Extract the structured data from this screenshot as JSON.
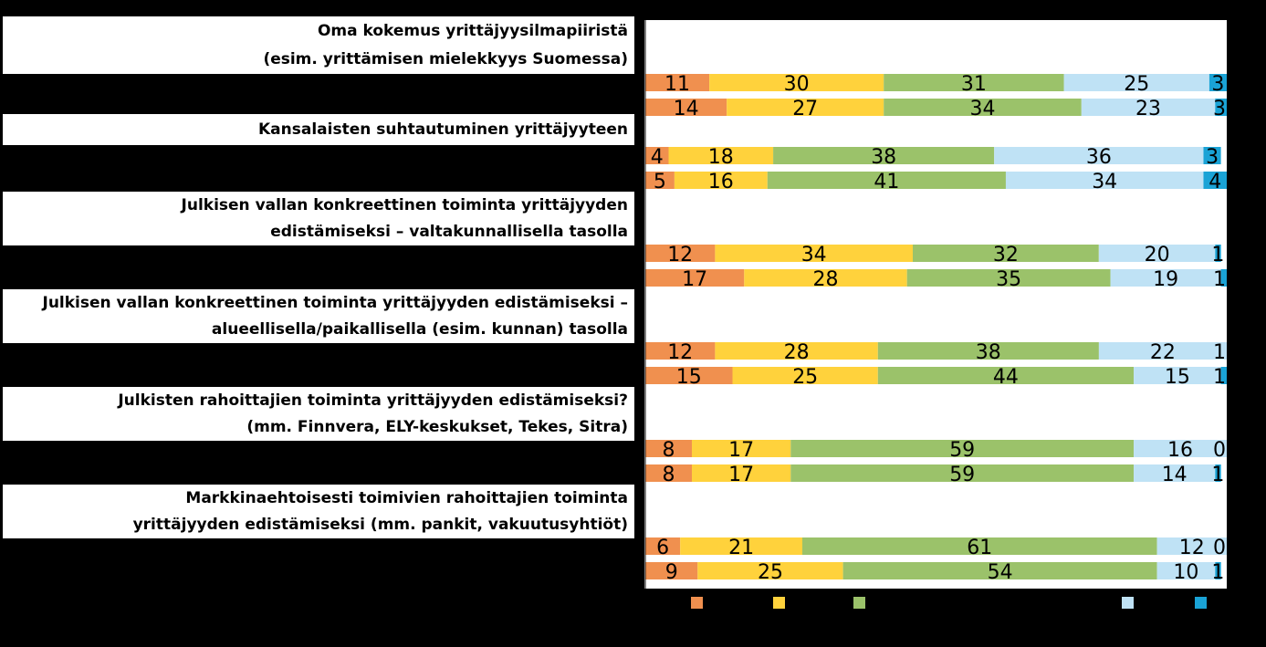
{
  "chart_data": {
    "type": "bar",
    "orientation": "horizontal",
    "stacked": true,
    "percent_scale": [
      0,
      100
    ],
    "colors": [
      "#f0904f",
      "#ffd23c",
      "#9bc26a",
      "#bfe2f5",
      "#1aa3d6"
    ],
    "legend": {
      "placement": "bottom",
      "labels": [
        "",
        "",
        "",
        "",
        ""
      ]
    },
    "groups": [
      {
        "question": [
          "Oma kokemus yrittäjyysilmapiiristä",
          "(esim. yrittämisen mielekkyys Suomessa)"
        ],
        "rows": [
          {
            "values": [
              11,
              30,
              31,
              25,
              3
            ],
            "labels": [
              "11",
              "30",
              "31",
              "25",
              "3"
            ]
          },
          {
            "values": [
              14,
              27,
              34,
              23,
              3
            ],
            "labels": [
              "14",
              "27",
              "34",
              "23",
              "3"
            ]
          }
        ]
      },
      {
        "question": [
          "Kansalaisten suhtautuminen yrittäjyyteen"
        ],
        "rows": [
          {
            "values": [
              4,
              18,
              38,
              36,
              3
            ],
            "labels": [
              "4",
              "18",
              "38",
              "36",
              "3"
            ]
          },
          {
            "values": [
              5,
              16,
              41,
              34,
              4
            ],
            "labels": [
              "5",
              "16",
              "41",
              "34",
              "4"
            ]
          }
        ]
      },
      {
        "question": [
          "Julkisen vallan konkreettinen toiminta yrittäjyyden",
          "edistämiseksi – valtakunnallisella tasolla"
        ],
        "rows": [
          {
            "values": [
              12,
              34,
              32,
              20,
              1
            ],
            "labels": [
              "12",
              "34",
              "32",
              "20",
              "1"
            ]
          },
          {
            "values": [
              17,
              28,
              35,
              19,
              1
            ],
            "labels": [
              "17",
              "28",
              "35",
              "19",
              "1"
            ]
          }
        ]
      },
      {
        "question": [
          "Julkisen vallan konkreettinen toiminta yrittäjyyden edistämiseksi –",
          "alueellisella/paikallisella (esim. kunnan) tasolla"
        ],
        "rows": [
          {
            "values": [
              12,
              28,
              38,
              22,
              1
            ],
            "labels": [
              "12",
              "28",
              "38",
              "22",
              "1"
            ]
          },
          {
            "values": [
              15,
              25,
              44,
              15,
              1
            ],
            "labels": [
              "15",
              "25",
              "44",
              "15",
              "1"
            ]
          }
        ]
      },
      {
        "question": [
          "Julkisten rahoittajien toiminta yrittäjyyden edistämiseksi?",
          "(mm. Finnvera, ELY-keskukset, Tekes, Sitra)"
        ],
        "rows": [
          {
            "values": [
              8,
              17,
              59,
              16,
              0
            ],
            "labels": [
              "8",
              "17",
              "59",
              "16",
              "0"
            ]
          },
          {
            "values": [
              8,
              17,
              59,
              14,
              1
            ],
            "labels": [
              "8",
              "17",
              "59",
              "14",
              "1"
            ]
          }
        ]
      },
      {
        "question": [
          "Markkinaehtoisesti toimivien rahoittajien toiminta",
          "yrittäjyyden edistämiseksi (mm. pankit, vakuutusyhtiöt)"
        ],
        "rows": [
          {
            "values": [
              6,
              21,
              61,
              12,
              0
            ],
            "labels": [
              "6",
              "21",
              "61",
              "12",
              "0"
            ]
          },
          {
            "values": [
              9,
              25,
              54,
              10,
              1
            ],
            "labels": [
              "9",
              "25",
              "54",
              "10",
              "1"
            ]
          }
        ]
      }
    ]
  }
}
